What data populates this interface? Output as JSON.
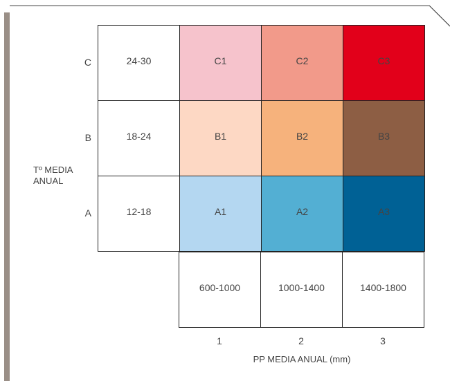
{
  "y_axis": {
    "title_line1": "Tº MEDIA",
    "title_line2": "ANUAL",
    "rows": [
      {
        "letter": "C",
        "range": "24-30",
        "cells": [
          {
            "label": "C1",
            "color": "#f6c3cc"
          },
          {
            "label": "C2",
            "color": "#f29a8a"
          },
          {
            "label": "C3",
            "color": "#e2001a"
          }
        ]
      },
      {
        "letter": "B",
        "range": "18-24",
        "cells": [
          {
            "label": "B1",
            "color": "#fdd8c4"
          },
          {
            "label": "B2",
            "color": "#f6b27c"
          },
          {
            "label": "B3",
            "color": "#8d5e44"
          }
        ]
      },
      {
        "letter": "A",
        "range": "12-18",
        "cells": [
          {
            "label": "A1",
            "color": "#b4d7f1"
          },
          {
            "label": "A2",
            "color": "#53afd3"
          },
          {
            "label": "A3",
            "color": "#006195"
          }
        ]
      }
    ]
  },
  "x_axis": {
    "ranges": [
      "600-1000",
      "1000-1400",
      "1400-1800"
    ],
    "numbers": [
      "1",
      "2",
      "3"
    ],
    "title": "PP MEDIA ANUAL (mm)"
  }
}
